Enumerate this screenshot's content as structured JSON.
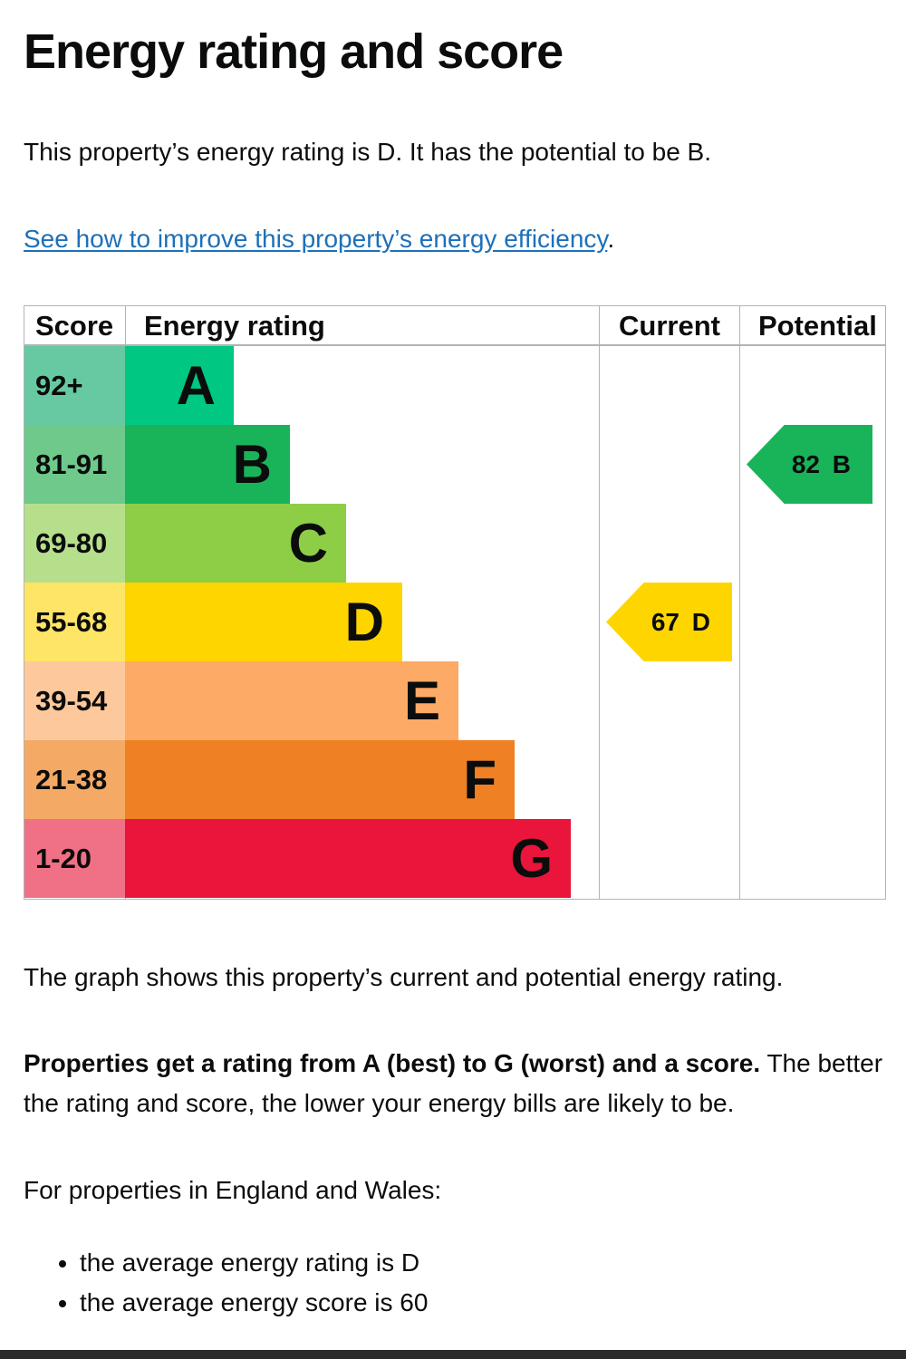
{
  "page": {
    "title": "Energy rating and score",
    "intro": "This property’s energy rating is D. It has the potential to be B.",
    "link_text": "See how to improve this property’s energy efficiency",
    "link_suffix": ".",
    "graph_note": "The graph shows this property’s current and potential energy rating.",
    "rating_note_bold": "Properties get a rating from A (best) to G (worst) and a score.",
    "rating_note_rest": " The better the rating and score, the lower your energy bills are likely to be.",
    "region_note": "For properties in England and Wales:",
    "averages": [
      "the average energy rating is D",
      "the average energy score is 60"
    ]
  },
  "chart_data": {
    "type": "table",
    "headers": {
      "score": "Score",
      "rating": "Energy rating",
      "current": "Current",
      "potential": "Potential"
    },
    "bands": [
      {
        "letter": "A",
        "range": "92+",
        "band_color": "#00c781",
        "score_color": "#67c9a1",
        "level": 1
      },
      {
        "letter": "B",
        "range": "81-91",
        "band_color": "#19b459",
        "score_color": "#6ec98b",
        "level": 2
      },
      {
        "letter": "C",
        "range": "69-80",
        "band_color": "#8dce46",
        "score_color": "#b6df8b",
        "level": 3
      },
      {
        "letter": "D",
        "range": "55-68",
        "band_color": "#ffd500",
        "score_color": "#ffe566",
        "level": 4
      },
      {
        "letter": "E",
        "range": "39-54",
        "band_color": "#fcaa65",
        "score_color": "#fdc99c",
        "level": 5
      },
      {
        "letter": "F",
        "range": "21-38",
        "band_color": "#ef8023",
        "score_color": "#f4a965",
        "level": 6
      },
      {
        "letter": "G",
        "range": "1-20",
        "band_color": "#e9153b",
        "score_color": "#f07186",
        "level": 7
      }
    ],
    "current": {
      "score": "67",
      "letter": "D",
      "color": "#ffd500"
    },
    "potential": {
      "score": "82",
      "letter": "B",
      "color": "#19b459"
    }
  }
}
